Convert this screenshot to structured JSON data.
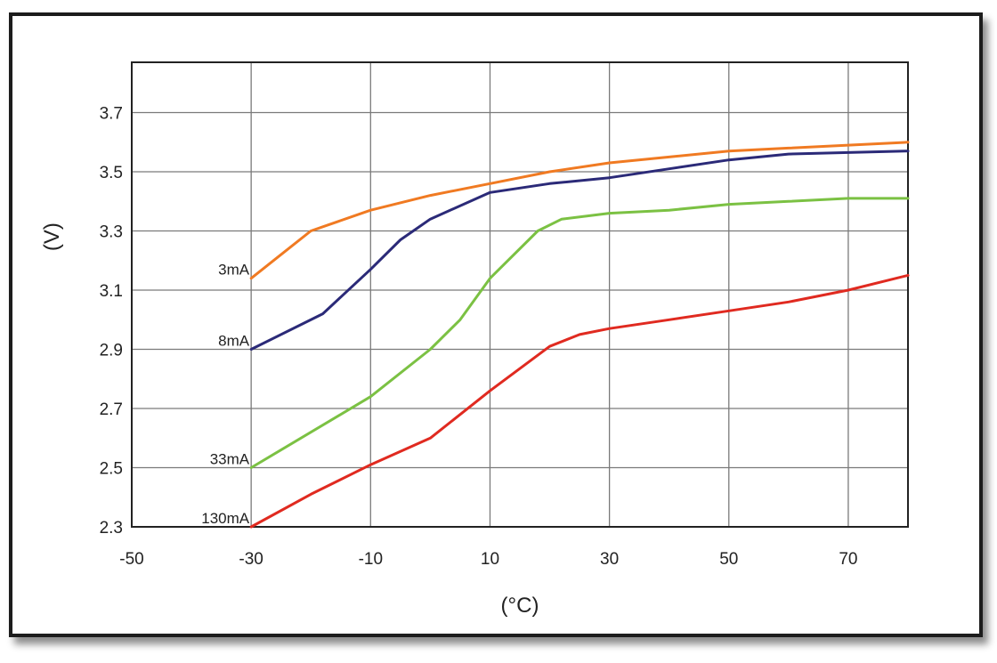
{
  "chart_data": {
    "type": "line",
    "title": "",
    "xlabel": "(°C)",
    "ylabel": "(V)",
    "xlim": [
      -50,
      80
    ],
    "ylim": [
      2.3,
      3.87
    ],
    "x_ticks": [
      -50,
      -30,
      -10,
      10,
      30,
      50,
      70
    ],
    "x_tick_labels": [
      "-50",
      "-30",
      "-10",
      "10",
      "30",
      "50",
      "70"
    ],
    "y_ticks": [
      2.3,
      2.5,
      2.7,
      2.9,
      3.1,
      3.3,
      3.5,
      3.7
    ],
    "y_tick_labels": [
      "2.3",
      "2.5",
      "2.7",
      "2.9",
      "3.1",
      "3.3",
      "3.5",
      "3.7"
    ],
    "grid": true,
    "legend": "inline labels at left end of each series",
    "series": [
      {
        "name": "3mA",
        "color": "#f07a22",
        "x": [
          -30,
          -25,
          -20,
          -10,
          0,
          10,
          20,
          30,
          40,
          50,
          60,
          70,
          80
        ],
        "y": [
          3.14,
          3.22,
          3.3,
          3.37,
          3.42,
          3.46,
          3.5,
          3.53,
          3.55,
          3.57,
          3.58,
          3.59,
          3.6
        ]
      },
      {
        "name": "8mA",
        "color": "#2b2a78",
        "x": [
          -30,
          -18,
          -10,
          -5,
          0,
          10,
          20,
          30,
          40,
          50,
          60,
          70,
          80
        ],
        "y": [
          2.9,
          3.02,
          3.17,
          3.27,
          3.34,
          3.43,
          3.46,
          3.48,
          3.51,
          3.54,
          3.56,
          3.565,
          3.57
        ]
      },
      {
        "name": "33mA",
        "color": "#7bc143",
        "x": [
          -30,
          -10,
          0,
          5,
          10,
          18,
          22,
          30,
          40,
          50,
          60,
          70,
          80
        ],
        "y": [
          2.5,
          2.74,
          2.9,
          3.0,
          3.14,
          3.3,
          3.34,
          3.36,
          3.37,
          3.39,
          3.4,
          3.41,
          3.41
        ]
      },
      {
        "name": "130mA",
        "color": "#e02a20",
        "x": [
          -30,
          -20,
          -10,
          0,
          10,
          20,
          25,
          30,
          40,
          50,
          60,
          70,
          80
        ],
        "y": [
          2.3,
          2.41,
          2.51,
          2.6,
          2.76,
          2.91,
          2.95,
          2.97,
          3.0,
          3.03,
          3.06,
          3.1,
          3.15
        ]
      }
    ]
  }
}
